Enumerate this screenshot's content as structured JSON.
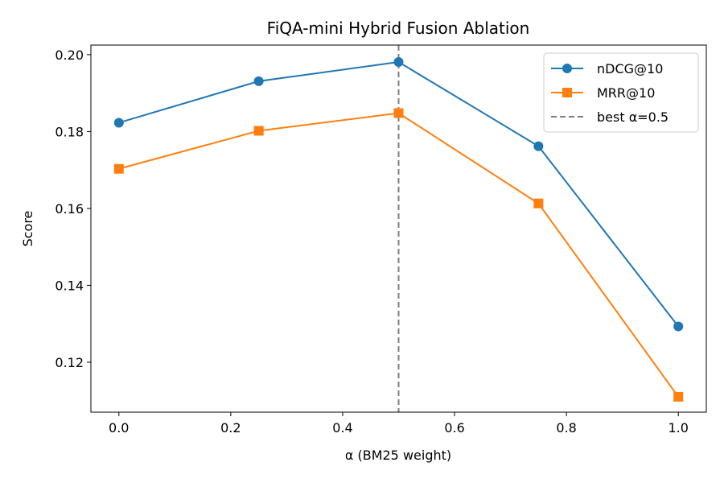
{
  "chart_data": {
    "type": "line",
    "title": "FiQA-mini Hybrid Fusion Ablation",
    "xlabel": "α (BM25 weight)",
    "ylabel": "Score",
    "x": [
      0.0,
      0.25,
      0.5,
      0.75,
      1.0
    ],
    "xlim": [
      -0.05,
      1.05
    ],
    "ylim": [
      0.107,
      0.2025
    ],
    "xticks": [
      0.0,
      0.2,
      0.4,
      0.6,
      0.8,
      1.0
    ],
    "xtick_labels": [
      "0.0",
      "0.2",
      "0.4",
      "0.6",
      "0.8",
      "1.0"
    ],
    "yticks": [
      0.12,
      0.14,
      0.16,
      0.18,
      0.2
    ],
    "ytick_labels": [
      "0.12",
      "0.14",
      "0.16",
      "0.18",
      "0.20"
    ],
    "grid": false,
    "legend_position": "top-right",
    "series": [
      {
        "name": "nDCG@10",
        "values": [
          0.1823,
          0.1931,
          0.1981,
          0.1762,
          0.1293
        ],
        "color": "#1f77b4",
        "marker": "circle"
      },
      {
        "name": "MRR@10",
        "values": [
          0.1703,
          0.1802,
          0.1848,
          0.1613,
          0.111
        ],
        "color": "#ff7f0e",
        "marker": "square"
      }
    ],
    "reference_line": {
      "name": "best α=0.5",
      "x": 0.5,
      "color": "#7f7f7f",
      "style": "dashed"
    }
  }
}
